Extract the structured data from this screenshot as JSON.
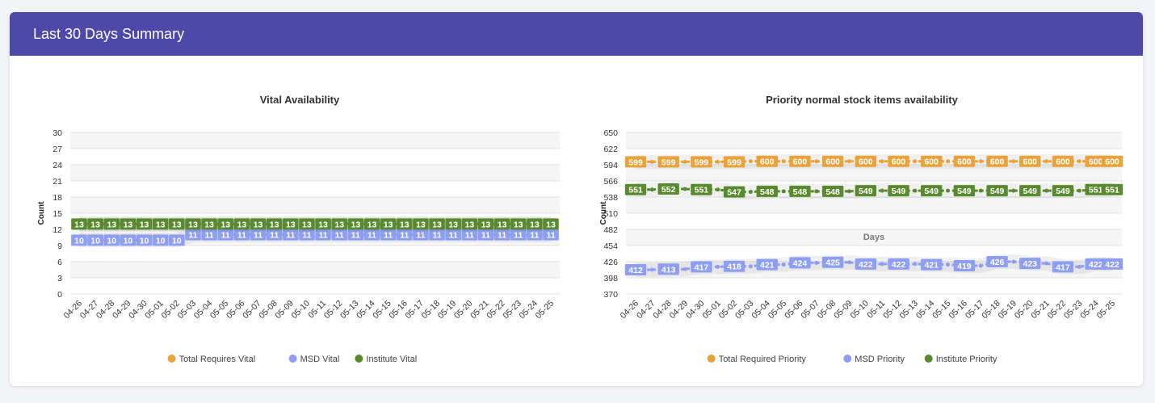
{
  "header": {
    "title": "Last 30 Days Summary"
  },
  "colors": {
    "header_bg": "#4e49a8",
    "total": "#e8a33a",
    "msd": "#8e9ef2",
    "institute": "#5a8a2f"
  },
  "chart_data": [
    {
      "type": "line",
      "title": "Vital Availability",
      "xlabel": "",
      "ylabel": "Count",
      "ylim": [
        0,
        30
      ],
      "yticks": [
        0,
        3,
        6,
        9,
        12,
        15,
        18,
        21,
        24,
        27,
        30
      ],
      "categories": [
        "04-26",
        "04-27",
        "04-28",
        "04-29",
        "04-30",
        "05-01",
        "05-02",
        "05-03",
        "05-04",
        "05-05",
        "05-06",
        "05-07",
        "05-08",
        "05-09",
        "05-10",
        "05-11",
        "05-12",
        "05-13",
        "05-14",
        "05-15",
        "05-16",
        "05-17",
        "05-18",
        "05-19",
        "05-20",
        "05-21",
        "05-22",
        "05-23",
        "05-24",
        "05-25"
      ],
      "series": [
        {
          "name": "Total Requires Vital",
          "color": "#e8a33a",
          "show_labels": false,
          "values": [
            13,
            13,
            13,
            13,
            13,
            13,
            13,
            13,
            13,
            13,
            13,
            13,
            13,
            13,
            13,
            13,
            13,
            13,
            13,
            13,
            13,
            13,
            13,
            13,
            13,
            13,
            13,
            13,
            13,
            13
          ]
        },
        {
          "name": "MSD Vital",
          "color": "#8e9ef2",
          "show_labels": true,
          "values": [
            10,
            10,
            10,
            10,
            10,
            10,
            10,
            11,
            11,
            11,
            11,
            11,
            11,
            11,
            11,
            11,
            11,
            11,
            11,
            11,
            11,
            11,
            11,
            11,
            11,
            11,
            11,
            11,
            11,
            11
          ]
        },
        {
          "name": "Institute Vital",
          "color": "#5a8a2f",
          "show_labels": true,
          "values": [
            13,
            13,
            13,
            13,
            13,
            13,
            13,
            13,
            13,
            13,
            13,
            13,
            13,
            13,
            13,
            13,
            13,
            13,
            13,
            13,
            13,
            13,
            13,
            13,
            13,
            13,
            13,
            13,
            13,
            13
          ]
        }
      ],
      "legend": [
        "Total Requires Vital",
        "MSD Vital",
        "Institute Vital"
      ]
    },
    {
      "type": "line",
      "title": "Priority normal stock items availability",
      "xlabel": "Days",
      "ylabel": "Count",
      "ylim": [
        370,
        650
      ],
      "yticks": [
        370,
        398,
        426,
        454,
        482,
        510,
        538,
        566,
        594,
        622,
        650
      ],
      "categories": [
        "04-26",
        "04-27",
        "04-28",
        "04-29",
        "04-30",
        "05-01",
        "05-02",
        "05-03",
        "05-04",
        "05-05",
        "05-06",
        "05-07",
        "05-08",
        "05-09",
        "05-10",
        "05-11",
        "05-12",
        "05-13",
        "05-14",
        "05-15",
        "05-16",
        "05-17",
        "05-18",
        "05-19",
        "05-20",
        "05-21",
        "05-22",
        "05-23",
        "05-24",
        "05-25"
      ],
      "series": [
        {
          "name": "Total Required Priority",
          "color": "#e8a33a",
          "show_labels": true,
          "values": [
            599,
            599,
            599,
            599,
            599,
            599,
            599,
            600,
            600,
            600,
            600,
            600,
            600,
            600,
            600,
            600,
            600,
            600,
            600,
            600,
            600,
            600,
            600,
            600,
            600,
            600,
            600,
            600,
            600,
            600
          ]
        },
        {
          "name": "MSD Priority",
          "color": "#8e9ef2",
          "show_labels": true,
          "values": [
            412,
            412,
            413,
            413,
            417,
            417,
            418,
            418,
            421,
            421,
            424,
            424,
            425,
            425,
            422,
            422,
            422,
            422,
            421,
            421,
            419,
            419,
            426,
            426,
            423,
            423,
            417,
            417,
            422,
            422
          ]
        },
        {
          "name": "Institute Priority",
          "color": "#5a8a2f",
          "show_labels": true,
          "values": [
            551,
            551,
            552,
            552,
            551,
            551,
            547,
            547,
            548,
            548,
            548,
            548,
            548,
            548,
            549,
            549,
            549,
            549,
            549,
            549,
            549,
            549,
            549,
            549,
            549,
            549,
            549,
            549,
            551,
            551
          ]
        }
      ],
      "legend": [
        "Total Required Priority",
        "MSD Priority",
        "Institute Priority"
      ]
    }
  ]
}
